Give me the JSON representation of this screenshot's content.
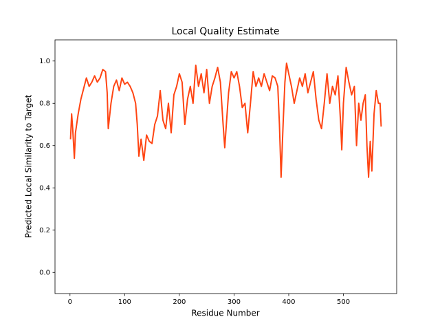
{
  "chart_data": {
    "type": "line",
    "title": "Local Quality Estimate",
    "xlabel": "Residue Number",
    "ylabel": "Predicted Local Similarity to Target",
    "x": [
      1,
      3,
      5,
      8,
      10,
      15,
      20,
      25,
      30,
      35,
      40,
      45,
      50,
      55,
      60,
      65,
      68,
      70,
      75,
      80,
      85,
      90,
      95,
      100,
      105,
      110,
      115,
      120,
      123,
      126,
      130,
      135,
      140,
      145,
      150,
      155,
      160,
      165,
      170,
      175,
      180,
      185,
      190,
      195,
      200,
      205,
      208,
      210,
      215,
      220,
      225,
      230,
      235,
      240,
      245,
      250,
      255,
      260,
      265,
      270,
      275,
      280,
      283,
      287,
      290,
      295,
      300,
      305,
      310,
      315,
      320,
      325,
      330,
      335,
      340,
      345,
      350,
      355,
      360,
      365,
      370,
      375,
      380,
      383,
      386,
      390,
      393,
      396,
      400,
      405,
      410,
      415,
      420,
      425,
      430,
      435,
      440,
      445,
      450,
      455,
      460,
      465,
      470,
      475,
      480,
      485,
      490,
      495,
      497,
      500,
      505,
      510,
      515,
      520,
      524,
      528,
      532,
      536,
      540,
      543,
      546,
      549,
      552,
      556,
      560,
      564,
      567,
      569
    ],
    "series": [
      {
        "name": null,
        "color": "#ff4513",
        "values": [
          0.63,
          0.75,
          0.68,
          0.54,
          0.66,
          0.75,
          0.82,
          0.87,
          0.92,
          0.88,
          0.9,
          0.93,
          0.9,
          0.92,
          0.96,
          0.95,
          0.85,
          0.68,
          0.8,
          0.88,
          0.91,
          0.86,
          0.92,
          0.89,
          0.9,
          0.88,
          0.85,
          0.8,
          0.7,
          0.55,
          0.63,
          0.53,
          0.65,
          0.62,
          0.61,
          0.7,
          0.74,
          0.86,
          0.72,
          0.68,
          0.8,
          0.66,
          0.84,
          0.88,
          0.94,
          0.9,
          0.78,
          0.7,
          0.82,
          0.88,
          0.8,
          0.98,
          0.88,
          0.94,
          0.85,
          0.96,
          0.8,
          0.88,
          0.92,
          0.97,
          0.9,
          0.7,
          0.59,
          0.74,
          0.85,
          0.95,
          0.92,
          0.95,
          0.88,
          0.78,
          0.8,
          0.66,
          0.8,
          0.95,
          0.88,
          0.92,
          0.88,
          0.94,
          0.9,
          0.86,
          0.93,
          0.92,
          0.88,
          0.7,
          0.45,
          0.72,
          0.9,
          0.99,
          0.94,
          0.88,
          0.8,
          0.86,
          0.92,
          0.88,
          0.94,
          0.85,
          0.9,
          0.95,
          0.82,
          0.72,
          0.68,
          0.8,
          0.94,
          0.8,
          0.88,
          0.84,
          0.93,
          0.7,
          0.58,
          0.8,
          0.97,
          0.9,
          0.84,
          0.88,
          0.6,
          0.8,
          0.72,
          0.8,
          0.84,
          0.6,
          0.45,
          0.62,
          0.48,
          0.75,
          0.86,
          0.8,
          0.8,
          0.69
        ]
      }
    ],
    "xlim": [
      -27.4,
      597.4
    ],
    "xticks": [
      0,
      100,
      200,
      300,
      400,
      500
    ],
    "ylim": [
      -0.1,
      1.1
    ],
    "yticks": [
      {
        "value": 0,
        "label": "0.0"
      },
      0.2,
      0.4,
      0.6,
      0.8,
      {
        "value": 1,
        "label": "1.0"
      }
    ]
  }
}
